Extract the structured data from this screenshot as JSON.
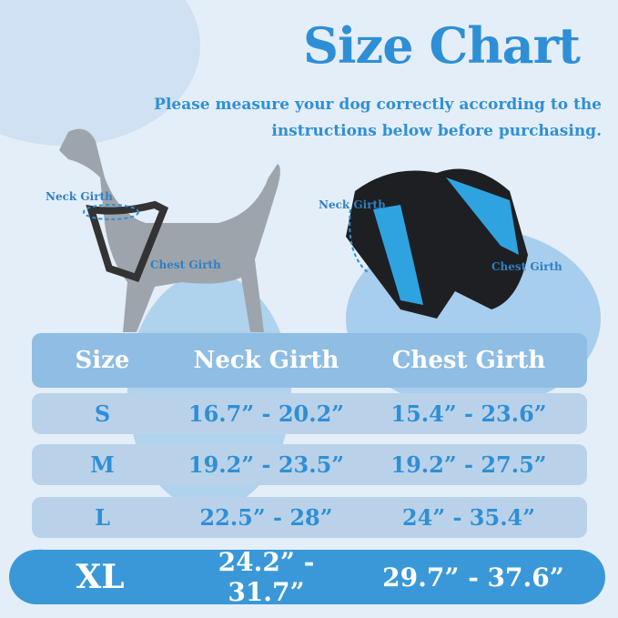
{
  "title": "Size Chart",
  "subtitle": [
    "Please measure your dog correctly according to the",
    "instructions below before purchasing."
  ],
  "dog_labels": {
    "neck": "Neck Girth",
    "chest": "Chest Girth"
  },
  "harness_labels": {
    "neck": "Neck Girth",
    "chest": "Chest Girth"
  },
  "table": {
    "headers": [
      "Size",
      "Neck Girth",
      "Chest Girth"
    ],
    "rows": [
      [
        "S",
        "16.7” - 20.2”",
        "15.4” - 23.6”"
      ],
      [
        "M",
        "19.2” - 23.5”",
        "19.2” - 27.5”"
      ],
      [
        "L",
        "22.5” - 28”",
        "24” - 35.4”"
      ],
      [
        "XL",
        "24.2” - 31.7”",
        "29.7” - 37.6”"
      ]
    ]
  },
  "colors": {
    "accent": "#2f8fd6",
    "background": "#e4eef8",
    "row": "#b9d2ea",
    "highlight": "#3a98d8"
  }
}
